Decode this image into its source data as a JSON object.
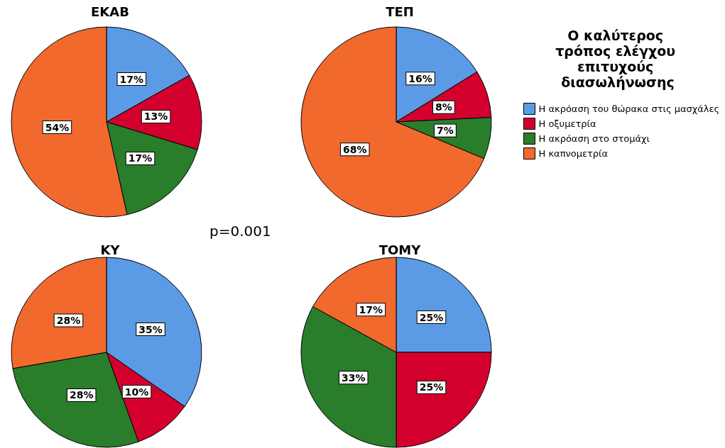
{
  "chart_data": [
    {
      "type": "pie",
      "title": "ΕΚΑΒ",
      "categories": [
        null,
        null,
        null,
        null
      ],
      "values": [
        17,
        13,
        17,
        54
      ],
      "value_labels": [
        "17%",
        "13%",
        "17%",
        "54%"
      ],
      "colors": [
        "#5b9be6",
        "#d3002e",
        "#2a7d2a",
        "#f2692e"
      ],
      "annotations": [
        "p=0.001"
      ]
    },
    {
      "type": "pie",
      "title": "ΤΕΠ",
      "categories": [
        "Η ακρόαση του θώρακα στις μασχάλες",
        "Η οξυμετρία",
        "Η ακρόαση στο στομάχι",
        "Η καπνομετρία"
      ],
      "values": [
        16,
        8,
        7,
        68
      ],
      "value_labels": [
        "16%",
        "8%",
        "7%",
        "68%"
      ],
      "colors": [
        "#5b9be6",
        "#d3002e",
        "#2a7d2a",
        "#f2692e"
      ],
      "legend": "right",
      "legend_title": "Ο καλύτερος τρόπος ελέγχου επιτυχούς διασωλήνωσης"
    },
    {
      "type": "pie",
      "title": "ΚΥ",
      "categories": [
        null,
        null,
        null,
        null
      ],
      "values": [
        35,
        10,
        28,
        28
      ],
      "value_labels": [
        "35%",
        "10%",
        "28%",
        "28%"
      ],
      "colors": [
        "#5b9be6",
        "#d3002e",
        "#2a7d2a",
        "#f2692e"
      ]
    },
    {
      "type": "pie",
      "title": "ΤΟΜΥ",
      "categories": [
        null,
        null,
        null,
        null
      ],
      "values": [
        25,
        25,
        33,
        17
      ],
      "value_labels": [
        "25%",
        "25%",
        "33%",
        "17%"
      ],
      "colors": [
        "#5b9be6",
        "#d3002e",
        "#2a7d2a",
        "#f2692e"
      ]
    }
  ]
}
